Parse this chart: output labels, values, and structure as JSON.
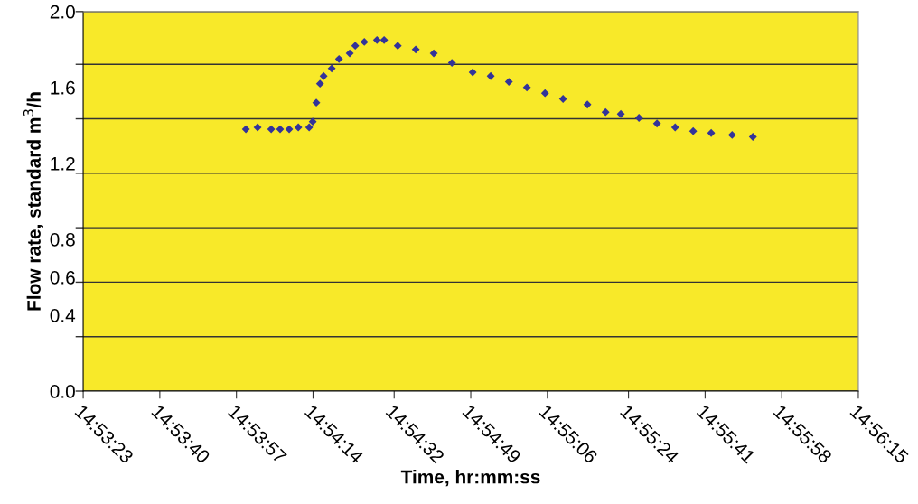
{
  "chart_data": {
    "type": "scatter",
    "xlabel": "Time, hr:mm:ss",
    "ylabel": "Flow rate, standard m$^{3}$/h",
    "x": [
      14.89975,
      14.90047,
      14.90131,
      14.90186,
      14.90242,
      14.90298,
      14.90365,
      14.90387,
      14.90409,
      14.90432,
      14.90454,
      14.90504,
      14.90549,
      14.90615,
      14.90649,
      14.90705,
      14.90783,
      14.90827,
      14.90911,
      14.91022,
      14.91133,
      14.91245,
      14.91373,
      14.91484,
      14.91596,
      14.91707,
      14.91819,
      14.9193,
      14.9208,
      14.92192,
      14.92286,
      14.92398,
      14.92509,
      14.92621,
      14.92732,
      14.92843,
      14.92972,
      14.931
    ],
    "series": [
      {
        "color": "#333399",
        "values": [
          1.38,
          1.39,
          1.38,
          1.38,
          1.38,
          1.39,
          1.39,
          1.42,
          1.52,
          1.62,
          1.66,
          1.7,
          1.75,
          1.78,
          1.82,
          1.84,
          1.85,
          1.85,
          1.82,
          1.8,
          1.78,
          1.73,
          1.68,
          1.66,
          1.63,
          1.6,
          1.57,
          1.54,
          1.51,
          1.47,
          1.46,
          1.44,
          1.41,
          1.39,
          1.37,
          1.36,
          1.35,
          1.34
        ]
      }
    ],
    "marker": "diamond",
    "grid": "y",
    "xlim": [
      14.88972,
      14.9375
    ],
    "xticks": [
      {
        "value": 14.889722,
        "label": "14:53:23"
      },
      {
        "value": 14.894444,
        "label": "14:53:40"
      },
      {
        "value": 14.899167,
        "label": "14:53:57"
      },
      {
        "value": 14.903889,
        "label": "14:54:14"
      },
      {
        "value": 14.908889,
        "label": "14:54:32"
      },
      {
        "value": 14.913611,
        "label": "14:54:49"
      },
      {
        "value": 14.918333,
        "label": "14:55:06"
      },
      {
        "value": 14.923333,
        "label": "14:55:24"
      },
      {
        "value": 14.928056,
        "label": "14:55:41"
      },
      {
        "value": 14.932778,
        "label": "14:55:58"
      },
      {
        "value": 14.9375,
        "label": "14:56:15"
      }
    ],
    "ylim": [
      0,
      2.0
    ],
    "yticks": [
      {
        "value": 0,
        "label": "0.0"
      },
      {
        "value": 0.4,
        "label": "0.4"
      },
      {
        "value": 0.6,
        "label": "0.6"
      },
      {
        "value": 0.8,
        "label": "0.8"
      },
      {
        "value": 1.2,
        "label": "1.2"
      },
      {
        "value": 1.6,
        "label": "1.6"
      },
      {
        "value": 2.0,
        "label": "2.0"
      },
      {
        "value": 0,
        "label": null
      },
      {
        "value": 0.287,
        "label": null
      },
      {
        "value": 0.574,
        "label": null
      },
      {
        "value": 0.861,
        "label": null
      },
      {
        "value": 1.148,
        "label": null
      },
      {
        "value": 1.435,
        "label": null
      },
      {
        "value": 1.722,
        "label": null
      },
      {
        "value": 2.0,
        "label": null
      }
    ]
  }
}
